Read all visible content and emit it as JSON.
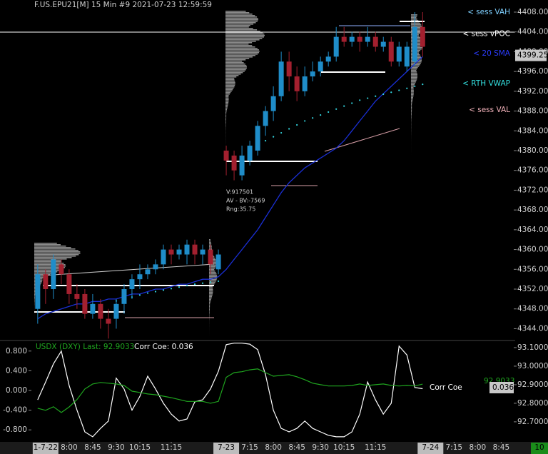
{
  "chart_data": [
    {
      "type": "candlestick",
      "title": "F.US.EPU21[M]  15 Min  #9 2021-07-23 12:59:59",
      "xlim": [
        -4.8,
        60.6
      ],
      "ylim": [
        4341.9,
        4410.45
      ],
      "yticks": [
        {
          "value": 4408,
          "label": "4408.00"
        },
        {
          "value": 4404,
          "label": "4404.00"
        },
        {
          "value": 4400,
          "label": "4400.00"
        },
        {
          "value": 4396,
          "label": "4396.00"
        },
        {
          "value": 4392,
          "label": "4392.00"
        },
        {
          "value": 4388,
          "label": "4388.00"
        },
        {
          "value": 4384,
          "label": "4384.00"
        },
        {
          "value": 4380,
          "label": "4380.00"
        },
        {
          "value": 4376,
          "label": "4376.00"
        },
        {
          "value": 4372,
          "label": "4372.00"
        },
        {
          "value": 4368,
          "label": "4368.00"
        },
        {
          "value": 4364,
          "label": "4364.00"
        },
        {
          "value": 4360,
          "label": "4360.00"
        },
        {
          "value": 4356,
          "label": "4356.00"
        },
        {
          "value": 4352,
          "label": "4352.00"
        },
        {
          "value": 4348,
          "label": "4348.00"
        },
        {
          "value": 4344,
          "label": "4344.00"
        }
      ],
      "up_color": "#1f8dc9",
      "down_color": "#a3202f",
      "open": [
        4348,
        4355,
        4352,
        4357,
        4355,
        4351,
        4351,
        4347,
        4349,
        4346,
        4346,
        4349,
        4352,
        4354,
        4355,
        4356,
        4357,
        4360,
        4359,
        4359,
        4361,
        4359,
        4360,
        4356,
        4380,
        4379,
        4375,
        4378,
        4380,
        4385,
        4388,
        4391,
        4398,
        4395,
        4392,
        4395,
        4396,
        4398,
        4399,
        4403,
        4402,
        4403,
        4402,
        4403,
        4401,
        4402,
        4398,
        4397,
        4398,
        4405
      ],
      "high": [
        4357,
        4356,
        4359,
        4358,
        4356,
        4353,
        4352,
        4351,
        4350,
        4348,
        4350,
        4353,
        4355,
        4357,
        4357,
        4358,
        4361,
        4361,
        4361,
        4362,
        4362,
        4361,
        4361,
        4360,
        4381,
        4380,
        4381,
        4382,
        4386,
        4389,
        4393,
        4400,
        4400,
        4397,
        4397,
        4398,
        4399,
        4400,
        4405,
        4405,
        4404,
        4404,
        4405,
        4404,
        4403,
        4403,
        4402,
        4402,
        4408,
        4408
      ],
      "low": [
        4345,
        4349,
        4350,
        4353,
        4349,
        4348,
        4346,
        4346,
        4344,
        4342,
        4344,
        4347,
        4350,
        4352,
        4354,
        4355,
        4356,
        4357,
        4358,
        4357,
        4357,
        4357,
        4355,
        4355,
        4375,
        4374,
        4374,
        4377,
        4379,
        4383,
        4386,
        4390,
        4392,
        4390,
        4391,
        4394,
        4395,
        4397,
        4398,
        4401,
        4401,
        4400,
        4401,
        4400,
        4400,
        4397,
        4397,
        4396,
        4397,
        4399
      ],
      "close": [
        4355,
        4352,
        4358,
        4355,
        4351,
        4350,
        4347,
        4349,
        4346,
        4345,
        4349,
        4352,
        4354,
        4355,
        4356,
        4357,
        4360,
        4359,
        4360,
        4361,
        4359,
        4360,
        4357,
        4359,
        4378,
        4376,
        4379,
        4381,
        4385,
        4388,
        4391,
        4398,
        4395,
        4392,
        4395,
        4396,
        4398,
        4399,
        4403,
        4402,
        4403,
        4402,
        4403,
        4401,
        4402,
        4398,
        4401,
        4401,
        4405,
        4401
      ],
      "series": [
        {
          "name": "20 SMA",
          "color": "#1a2fd6",
          "values": [
            4346,
            4347,
            4347.5,
            4348,
            4348.5,
            4349,
            4349,
            4349.5,
            4349.5,
            4350,
            4350,
            4350.5,
            4351,
            4351,
            4351.5,
            4352,
            4352,
            4352.5,
            4353,
            4353,
            4353.5,
            4354,
            4354,
            4354.5,
            4356,
            4358,
            4360,
            4362,
            4364,
            4366.5,
            4369,
            4371.5,
            4373.5,
            4375,
            4376.5,
            4377.5,
            4378.5,
            4379.5,
            4380.5,
            4382,
            4384,
            4386,
            4388,
            4390,
            4391.5,
            4393,
            4394.5,
            4396,
            4397.5,
            4399
          ]
        },
        {
          "name": "RTH VWAP",
          "color": "#33d6e0",
          "values": [
            null,
            null,
            null,
            null,
            null,
            null,
            null,
            null,
            null,
            null,
            4349.6,
            4350,
            4350.4,
            4350.8,
            4351.2,
            4351.5,
            4351.8,
            4352.1,
            4352.4,
            4352.7,
            4353,
            4353.2,
            4353.4,
            4353.6,
            null,
            null,
            null,
            4380.6,
            4381.2,
            4382,
            4382.8,
            4383.6,
            4384.4,
            4385.2,
            4386,
            4386.6,
            4387.2,
            4387.8,
            4388.4,
            4389,
            4389.6,
            4390.2,
            4390.6,
            4391,
            4391.4,
            4391.8,
            4392.2,
            4392.6,
            4393,
            4393.4
          ]
        }
      ],
      "levels": [
        {
          "label": "< sess VAH",
          "value": 4408,
          "color": "#7fd0ff"
        },
        {
          "label": "< sess vPOC",
          "value": 4403.6,
          "color": "#ffffff"
        },
        {
          "label": "< 20 SMA",
          "value": 4399.6,
          "color": "#2b3cff"
        },
        {
          "label": "< RTH VWAP",
          "value": 4393.6,
          "color": "#33e0e0"
        },
        {
          "label": "< sess VAL",
          "value": 4388.2,
          "color": "#f0b0b8"
        }
      ],
      "last_price": 4399.25,
      "annotations": [
        "V:917501",
        "AV - BV:-7569",
        "Rng:35.75"
      ]
    },
    {
      "type": "line",
      "legend": [
        "USDX (DXY) Last: 92.9033",
        "Corr Coe: 0.036"
      ],
      "xlim": [
        -4.8,
        60.6
      ],
      "xticks": [
        {
          "value": 1,
          "label": "1-7-22"
        },
        {
          "value": 4,
          "label": "8:00"
        },
        {
          "value": 7,
          "label": "8:45"
        },
        {
          "value": 10,
          "label": "9:30"
        },
        {
          "value": 13,
          "label": "10:15"
        },
        {
          "value": 17,
          "label": "11:15"
        },
        {
          "value": 24,
          "label": "7-23"
        },
        {
          "value": 27,
          "label": "7:15"
        },
        {
          "value": 30,
          "label": "8:00"
        },
        {
          "value": 33,
          "label": "8:45"
        },
        {
          "value": 36,
          "label": "9:30"
        },
        {
          "value": 39,
          "label": "10:15"
        },
        {
          "value": 43,
          "label": "11:15"
        },
        {
          "value": 50,
          "label": "7-24"
        },
        {
          "value": 53,
          "label": "7:15"
        },
        {
          "value": 56,
          "label": "8:00"
        },
        {
          "value": 59,
          "label": "8:45"
        }
      ],
      "ylim": [
        -1.058,
        1.043
      ],
      "yticks": [
        {
          "value": 0.8,
          "label": "0.800"
        },
        {
          "value": 0.4,
          "label": "0.400"
        },
        {
          "value": 0,
          "label": "0.000"
        },
        {
          "value": -0.4,
          "label": "-0.400"
        },
        {
          "value": -0.8,
          "label": "-0.800"
        }
      ],
      "y2lim": [
        92.588,
        93.146
      ],
      "y2ticks": [
        {
          "value": 93.1,
          "label": "93.1000"
        },
        {
          "value": 93.0,
          "label": "93.0000"
        },
        {
          "value": 92.9,
          "label": "92.9000"
        },
        {
          "value": 92.8,
          "label": "92.8000"
        },
        {
          "value": 92.7,
          "label": "92.7000"
        }
      ],
      "series": [
        {
          "name": "Corr Coe",
          "color": "#ffffff",
          "values": [
            -0.19,
            0.17,
            0.54,
            0.8,
            0.1,
            -0.4,
            -0.84,
            -0.94,
            -0.77,
            -0.62,
            0.25,
            0.03,
            -0.4,
            -0.12,
            0.29,
            0.03,
            -0.26,
            -0.48,
            -0.62,
            -0.58,
            -0.23,
            -0.19,
            0.03,
            0.39,
            0.93,
            0.96,
            0.96,
            0.94,
            0.83,
            0.32,
            -0.4,
            -0.77,
            -0.84,
            -0.77,
            -0.62,
            -0.77,
            -0.84,
            -0.91,
            -0.94,
            -0.94,
            -0.84,
            -0.48,
            0.17,
            -0.19,
            -0.48,
            -0.26,
            0.9,
            0.72,
            0.06,
            0.036
          ]
        },
        {
          "name": "USDX (DXY)",
          "color": "#1fa51f",
          "axis": "y2",
          "values": [
            92.773,
            92.762,
            92.781,
            92.75,
            92.78,
            92.82,
            92.877,
            92.904,
            92.912,
            92.908,
            92.904,
            92.896,
            92.865,
            92.858,
            92.85,
            92.846,
            92.838,
            92.83,
            92.82,
            92.81,
            92.81,
            92.81,
            92.8,
            92.81,
            92.94,
            92.965,
            92.97,
            92.98,
            92.985,
            92.965,
            92.946,
            92.95,
            92.954,
            92.943,
            92.927,
            92.908,
            92.9,
            92.893,
            92.893,
            92.893,
            92.896,
            92.904,
            92.896,
            92.9,
            92.904,
            92.896,
            92.893,
            92.896,
            92.893,
            92.9033
          ]
        }
      ],
      "corr_label": "Corr Coe",
      "corr_value": 0.036,
      "last_usdx": 92.9033,
      "corner_badge": "10"
    }
  ]
}
